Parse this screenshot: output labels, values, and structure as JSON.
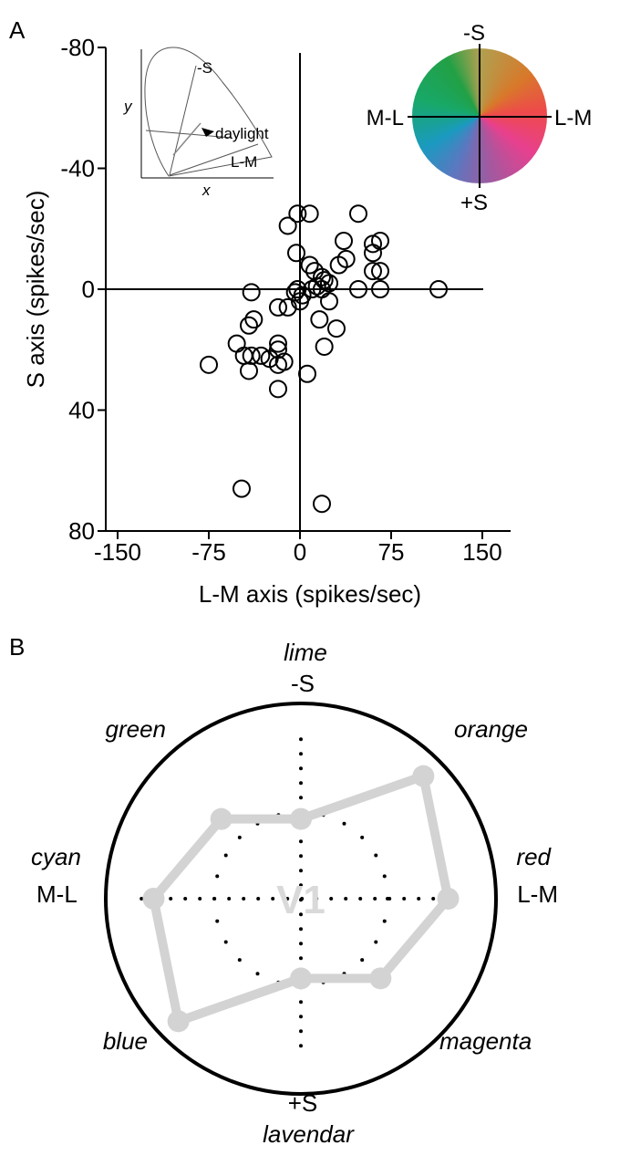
{
  "panels": {
    "a_letter": "A",
    "b_letter": "B"
  },
  "colors": {
    "marker_stroke": "#000000",
    "polar_line": "#d3d3d3",
    "v1_text": "#d9d9d9"
  },
  "chart_data": [
    {
      "type": "scatter",
      "title": "",
      "xlabel": "L-M axis (spikes/sec)",
      "ylabel": "S axis (spikes/sec)",
      "xlim": [
        -160,
        160
      ],
      "ylim": [
        80,
        -80
      ],
      "y_inverted": true,
      "xticks": [
        -150,
        -75,
        0,
        75,
        150
      ],
      "xtick_labels": [
        "-150",
        "-75",
        "0",
        "75",
        "150"
      ],
      "yticks": [
        -80,
        -40,
        0,
        40,
        80
      ],
      "ytick_labels": [
        "-80",
        "-40",
        "0",
        "40",
        "80"
      ],
      "grid": false,
      "marker": "open-circle",
      "points": [
        {
          "x": -2,
          "y": -25
        },
        {
          "x": 8,
          "y": -25
        },
        {
          "x": 48,
          "y": -25
        },
        {
          "x": -10,
          "y": -21
        },
        {
          "x": 66,
          "y": -16
        },
        {
          "x": 60,
          "y": -15
        },
        {
          "x": 36,
          "y": -16
        },
        {
          "x": -3,
          "y": -12
        },
        {
          "x": 60,
          "y": -12
        },
        {
          "x": 38,
          "y": -10
        },
        {
          "x": 32,
          "y": -8
        },
        {
          "x": 8,
          "y": -8
        },
        {
          "x": 12,
          "y": -6
        },
        {
          "x": 18,
          "y": -4
        },
        {
          "x": 60,
          "y": -6
        },
        {
          "x": 66,
          "y": -6
        },
        {
          "x": 20,
          "y": -3
        },
        {
          "x": 24,
          "y": -2
        },
        {
          "x": 14,
          "y": -1
        },
        {
          "x": 18,
          "y": 0
        },
        {
          "x": -2,
          "y": 0
        },
        {
          "x": -4,
          "y": 1
        },
        {
          "x": 48,
          "y": 0
        },
        {
          "x": 66,
          "y": 0
        },
        {
          "x": 114,
          "y": 0
        },
        {
          "x": -40,
          "y": 1
        },
        {
          "x": 10,
          "y": 0
        },
        {
          "x": -10,
          "y": 6
        },
        {
          "x": -18,
          "y": 6
        },
        {
          "x": 0,
          "y": 4
        },
        {
          "x": 2,
          "y": 2
        },
        {
          "x": 24,
          "y": 4
        },
        {
          "x": -38,
          "y": 10
        },
        {
          "x": -42,
          "y": 12
        },
        {
          "x": 16,
          "y": 10
        },
        {
          "x": 30,
          "y": 13
        },
        {
          "x": -52,
          "y": 18
        },
        {
          "x": -18,
          "y": 18
        },
        {
          "x": -18,
          "y": 20
        },
        {
          "x": 20,
          "y": 19
        },
        {
          "x": -40,
          "y": 22
        },
        {
          "x": -46,
          "y": 22
        },
        {
          "x": -32,
          "y": 22
        },
        {
          "x": -25,
          "y": 23
        },
        {
          "x": -75,
          "y": 25
        },
        {
          "x": -13,
          "y": 24
        },
        {
          "x": -18,
          "y": 25
        },
        {
          "x": -42,
          "y": 27
        },
        {
          "x": 6,
          "y": 28
        },
        {
          "x": -18,
          "y": 33
        },
        {
          "x": -48,
          "y": 66
        },
        {
          "x": 18,
          "y": 71
        }
      ]
    },
    {
      "type": "inset-diagram",
      "xlabel": "x",
      "ylabel": "y",
      "labels": {
        "s_line": "-S",
        "white_point": "daylight",
        "lm_line": "L-M"
      }
    },
    {
      "type": "color-disc",
      "labels": {
        "top": "-S",
        "bottom": "+S",
        "left": "M-L",
        "right": "L-M"
      }
    },
    {
      "type": "polar",
      "center_label": "V1",
      "r_max": 1.0,
      "inner_ring_r": 0.5,
      "axes": [
        {
          "angle_deg": 90,
          "cone": "-S",
          "color": "lime"
        },
        {
          "angle_deg": 45,
          "color": "orange"
        },
        {
          "angle_deg": 0,
          "cone": "L-M",
          "color": "red"
        },
        {
          "angle_deg": -45,
          "color": "magenta"
        },
        {
          "angle_deg": -90,
          "cone": "+S",
          "color": "lavendar"
        },
        {
          "angle_deg": -135,
          "color": "blue"
        },
        {
          "angle_deg": 180,
          "cone": "M-L",
          "color": "cyan"
        },
        {
          "angle_deg": 135,
          "color": "green"
        }
      ],
      "values": [
        0.46,
        1.0,
        0.85,
        0.65,
        0.46,
        1.0,
        0.85,
        0.65
      ]
    }
  ]
}
